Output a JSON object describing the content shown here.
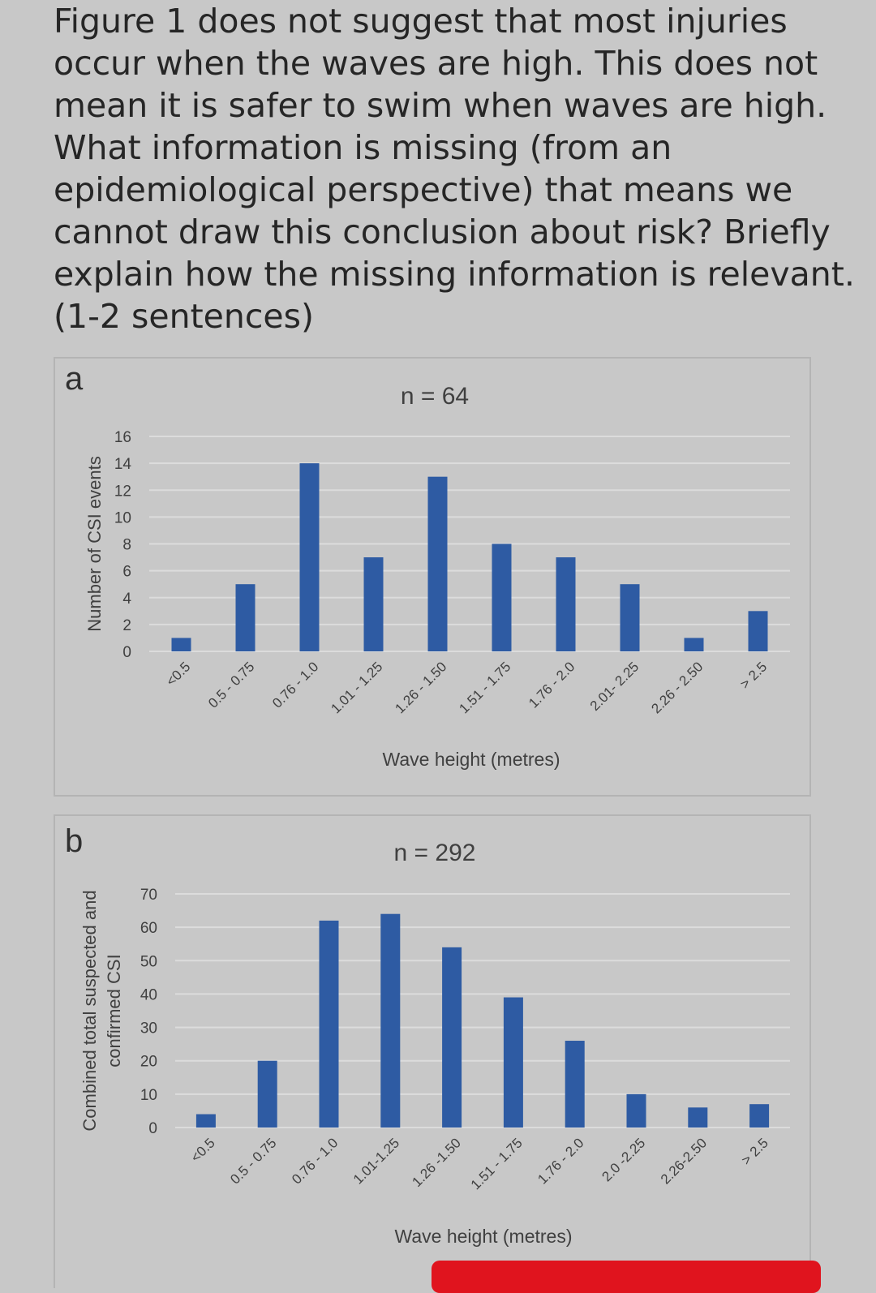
{
  "question": {
    "lines": [
      "Figure 1 does not suggest that most injuries",
      "occur when the waves are high. This does not",
      "mean it is safer to swim when waves are high.",
      "What information is missing (from an",
      "epidemiological perspective) that means we",
      "cannot draw this conclusion about risk? Briefly",
      "explain how the missing information is relevant.",
      "(1-2 sentences)"
    ]
  },
  "colors": {
    "bar": "#2e5ba3",
    "grid": "#dcdcdc",
    "text": "#404040",
    "background": "#c8c8c8"
  },
  "chart_data": [
    {
      "type": "bar",
      "panel_label": "a",
      "title": "n = 64",
      "xlabel": "Wave height (metres)",
      "ylabel": "Number of CSI events",
      "ylim": [
        0,
        16
      ],
      "yticks": [
        0,
        2,
        4,
        6,
        8,
        10,
        12,
        14,
        16
      ],
      "grid": true,
      "categories": [
        "<0.5",
        "0.5 - 0.75",
        "0.76 - 1.0",
        "1.01 - 1.25",
        "1.26 - 1.50",
        "1.51 - 1.75",
        "1.76 - 2.0",
        "2.01- 2.25",
        "2.26 - 2.50",
        "> 2.5"
      ],
      "values": [
        1,
        5,
        14,
        7,
        13,
        8,
        7,
        5,
        1,
        3
      ]
    },
    {
      "type": "bar",
      "panel_label": "b",
      "title": "n = 292",
      "xlabel": "Wave height (metres)",
      "ylabel": "Combined total suspected and confirmed CSI",
      "ylabel_lines": [
        "Combined total suspected and",
        "confirmed CSI"
      ],
      "ylim": [
        0,
        70
      ],
      "yticks": [
        0,
        10,
        20,
        30,
        40,
        50,
        60,
        70
      ],
      "grid": true,
      "categories": [
        "<0.5",
        "0.5 - 0.75",
        "0.76 - 1.0",
        "1.01-1.25",
        "1.26 -1.50",
        "1.51 - 1.75",
        "1.76 - 2.0",
        "2.0 -2.25",
        "2.26-2.50",
        "> 2.5"
      ],
      "values": [
        4,
        20,
        62,
        64,
        54,
        39,
        26,
        10,
        6,
        7
      ]
    }
  ]
}
